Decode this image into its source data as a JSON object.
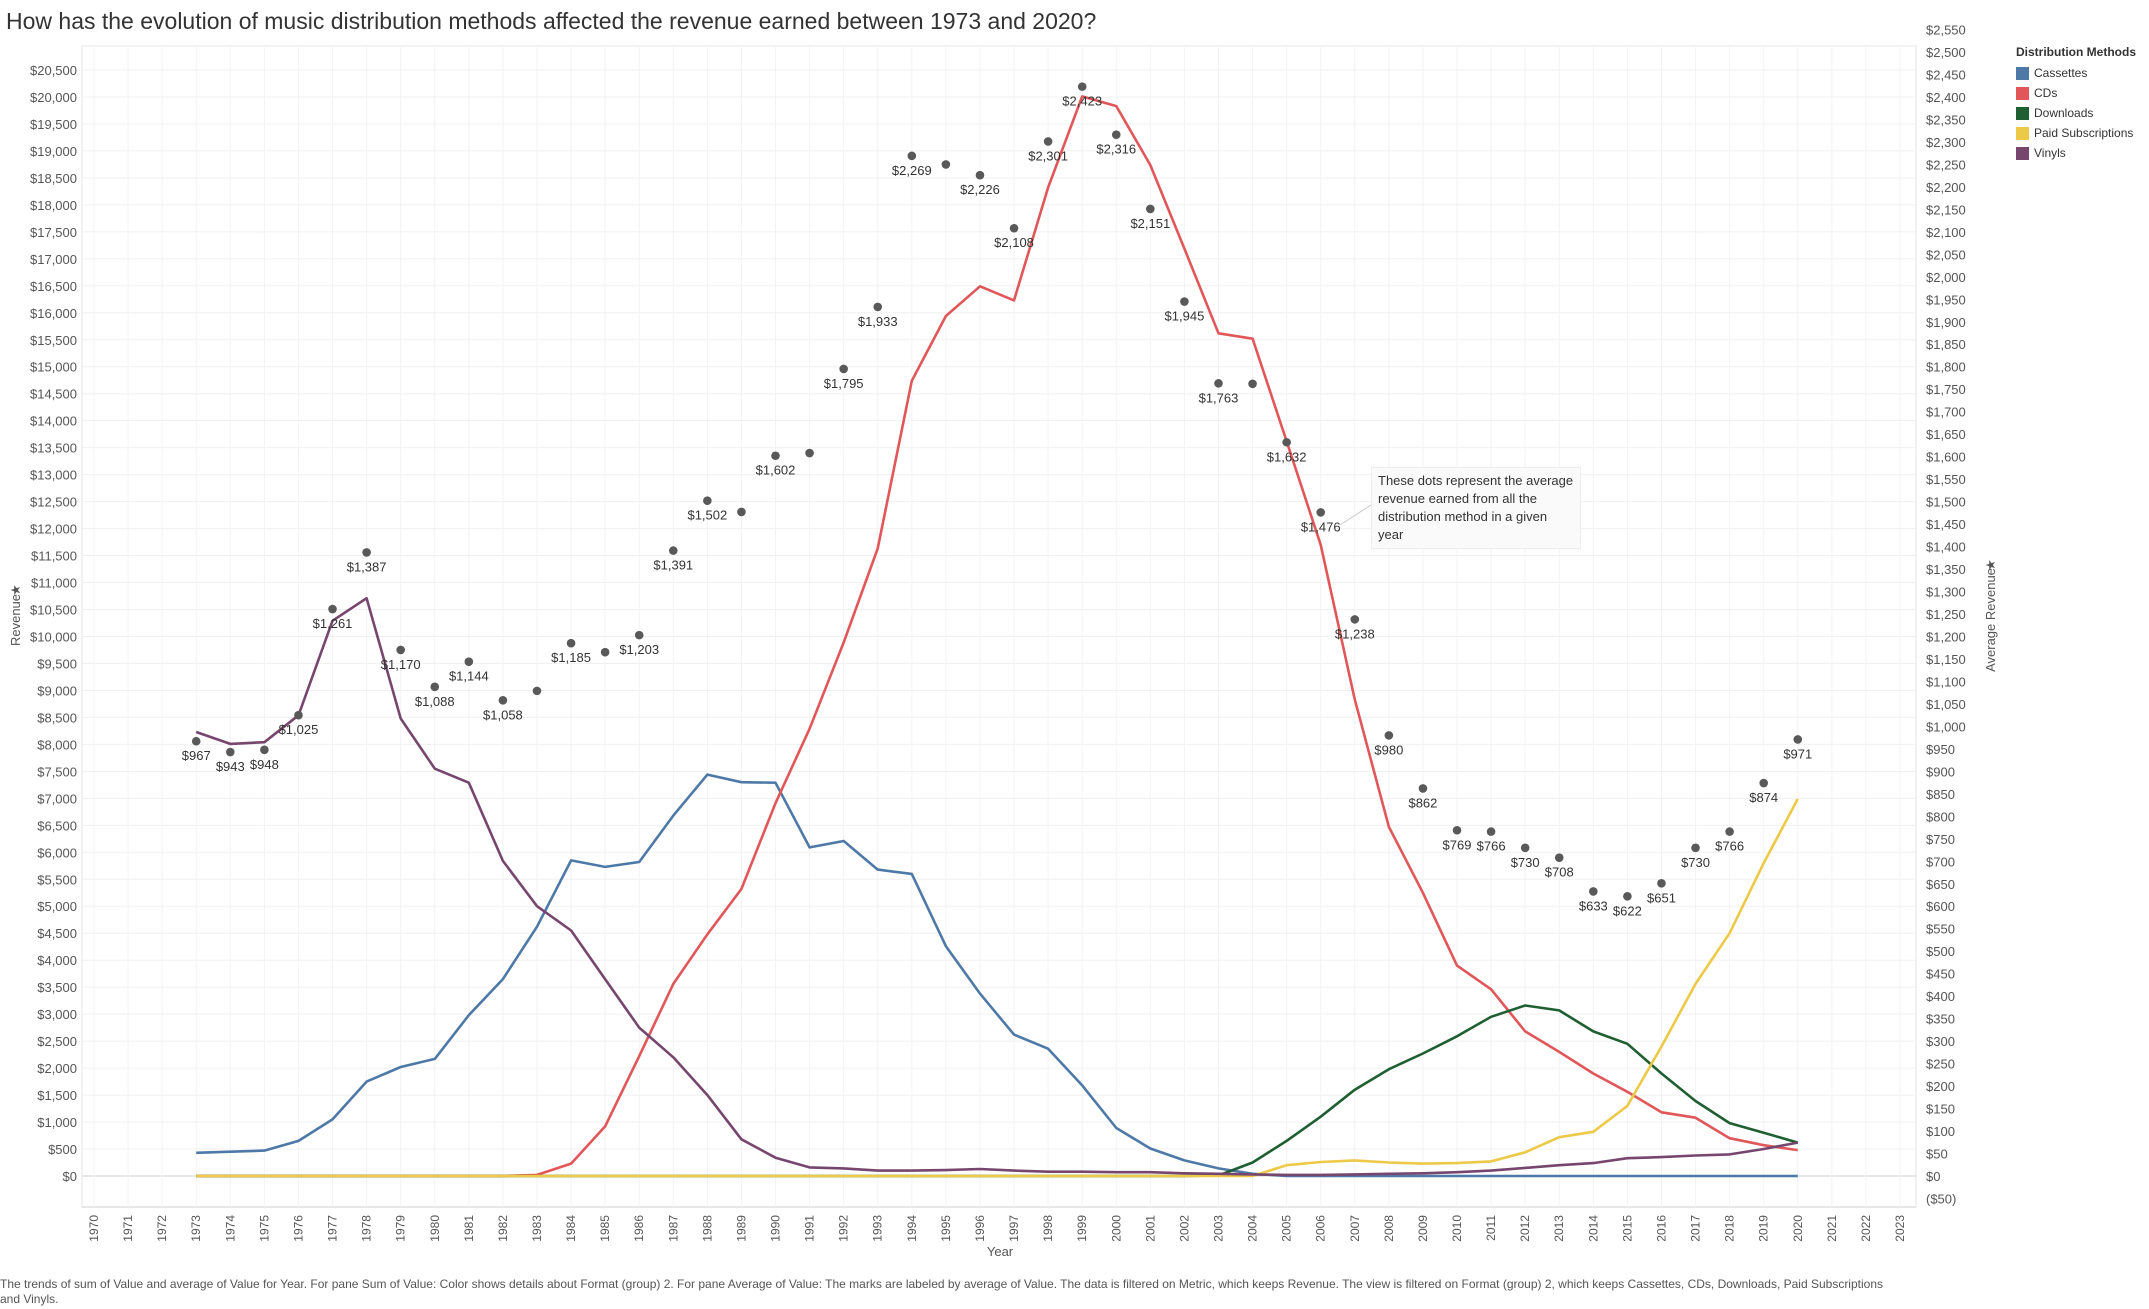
{
  "title": "How has the evolution of music distribution methods affected the revenue earned between 1973 and 2020?",
  "footnote": "The trends of sum of Value and average of Value for Year.  For pane Sum of Value:  Color shows details about Format (group) 2.  For pane Average of Value:  The marks are labeled by average of Value. The data is filtered on Metric, which keeps Revenue. The view is filtered on Format (group) 2, which keeps Cassettes, CDs, Downloads, Paid Subscriptions and Vinyls.",
  "annotation": "These dots represent the average revenue earned from all the distribution method in a given year",
  "legend": {
    "title": "Distribution Methods",
    "items": [
      {
        "label": "Cassettes",
        "color": "#4e79a7"
      },
      {
        "label": "CDs",
        "color": "#e15759"
      },
      {
        "label": "Downloads",
        "color": "#1f5f32"
      },
      {
        "label": "Paid Subscriptions",
        "color": "#edc948"
      },
      {
        "label": "Vinyls",
        "color": "#76466e"
      }
    ]
  },
  "chart_data": {
    "type": "line",
    "xlabel": "Year",
    "ylabel": "Revenue",
    "ylabel_right": "Average Revenue",
    "xlim": [
      1970,
      2023
    ],
    "ylim": [
      0,
      20500
    ],
    "ylim_right": [
      -50,
      2550
    ],
    "y_ticks": [
      "$0",
      "$500",
      "$1,000",
      "$1,500",
      "$2,000",
      "$2,500",
      "$3,000",
      "$3,500",
      "$4,000",
      "$4,500",
      "$5,000",
      "$5,500",
      "$6,000",
      "$6,500",
      "$7,000",
      "$7,500",
      "$8,000",
      "$8,500",
      "$9,000",
      "$9,500",
      "$10,000",
      "$10,500",
      "$11,000",
      "$11,500",
      "$12,000",
      "$12,500",
      "$13,000",
      "$13,500",
      "$14,000",
      "$14,500",
      "$15,000",
      "$15,500",
      "$16,000",
      "$16,500",
      "$17,000",
      "$17,500",
      "$18,000",
      "$18,500",
      "$19,000",
      "$19,500",
      "$20,000",
      "$20,500"
    ],
    "y_ticks_right": [
      "($50)",
      "$0",
      "$50",
      "$100",
      "$150",
      "$200",
      "$250",
      "$300",
      "$350",
      "$400",
      "$450",
      "$500",
      "$550",
      "$600",
      "$650",
      "$700",
      "$750",
      "$800",
      "$850",
      "$900",
      "$950",
      "$1,000",
      "$1,050",
      "$1,100",
      "$1,150",
      "$1,200",
      "$1,250",
      "$1,300",
      "$1,350",
      "$1,400",
      "$1,450",
      "$1,500",
      "$1,550",
      "$1,600",
      "$1,650",
      "$1,700",
      "$1,750",
      "$1,800",
      "$1,850",
      "$1,900",
      "$1,950",
      "$2,000",
      "$2,050",
      "$2,100",
      "$2,150",
      "$2,200",
      "$2,250",
      "$2,300",
      "$2,350",
      "$2,400",
      "$2,450",
      "$2,500",
      "$2,550"
    ],
    "x_ticks": [
      "1970",
      "1971",
      "1972",
      "1973",
      "1974",
      "1975",
      "1976",
      "1977",
      "1978",
      "1979",
      "1980",
      "1981",
      "1982",
      "1983",
      "1984",
      "1985",
      "1986",
      "1987",
      "1988",
      "1989",
      "1990",
      "1991",
      "1992",
      "1993",
      "1994",
      "1995",
      "1996",
      "1997",
      "1998",
      "1999",
      "2000",
      "2001",
      "2002",
      "2003",
      "2004",
      "2005",
      "2006",
      "2007",
      "2008",
      "2009",
      "2010",
      "2011",
      "2012",
      "2013",
      "2014",
      "2015",
      "2016",
      "2017",
      "2018",
      "2019",
      "2020",
      "2021",
      "2022",
      "2023"
    ],
    "years": [
      1973,
      1974,
      1975,
      1976,
      1977,
      1978,
      1979,
      1980,
      1981,
      1982,
      1983,
      1984,
      1985,
      1986,
      1987,
      1988,
      1989,
      1990,
      1991,
      1992,
      1993,
      1994,
      1995,
      1996,
      1997,
      1998,
      1999,
      2000,
      2001,
      2002,
      2003,
      2004,
      2005,
      2006,
      2007,
      2008,
      2009,
      2010,
      2011,
      2012,
      2013,
      2014,
      2015,
      2016,
      2017,
      2018,
      2019,
      2020
    ],
    "series": [
      {
        "name": "Cassettes",
        "color": "#4e79a7",
        "values": [
          430,
          450,
          470,
          650,
          1050,
          1750,
          2020,
          2170,
          2980,
          3650,
          4620,
          5850,
          5730,
          5820,
          6680,
          7440,
          7300,
          7290,
          6090,
          6210,
          5680,
          5600,
          4260,
          3380,
          2620,
          2360,
          1680,
          890,
          510,
          290,
          140,
          40,
          0,
          0,
          0,
          0,
          0,
          0,
          0,
          0,
          0,
          0,
          0,
          0,
          0,
          0,
          0,
          0
        ]
      },
      {
        "name": "CDs",
        "color": "#e15759",
        "values": [
          0,
          0,
          0,
          0,
          0,
          0,
          0,
          0,
          0,
          0,
          20,
          230,
          920,
          2220,
          3560,
          4480,
          5320,
          6910,
          8290,
          9890,
          11630,
          14740,
          15940,
          16490,
          16230,
          18320,
          20010,
          19830,
          18740,
          17190,
          15620,
          15520,
          13620,
          11700,
          8830,
          6470,
          5250,
          3900,
          3460,
          2680,
          2300,
          1900,
          1560,
          1180,
          1080,
          700,
          570,
          480
        ]
      },
      {
        "name": "Downloads",
        "color": "#1f5f32",
        "values": [
          0,
          0,
          0,
          0,
          0,
          0,
          0,
          0,
          0,
          0,
          0,
          0,
          0,
          0,
          0,
          0,
          0,
          0,
          0,
          0,
          0,
          0,
          0,
          0,
          0,
          0,
          0,
          0,
          0,
          0,
          10,
          250,
          650,
          1100,
          1600,
          1980,
          2270,
          2590,
          2950,
          3160,
          3070,
          2680,
          2450,
          1900,
          1390,
          980,
          800,
          620
        ]
      },
      {
        "name": "Paid Subscriptions",
        "color": "#edc948",
        "values": [
          0,
          0,
          0,
          0,
          0,
          0,
          0,
          0,
          0,
          0,
          0,
          0,
          0,
          0,
          0,
          0,
          0,
          0,
          0,
          0,
          0,
          0,
          0,
          0,
          0,
          0,
          0,
          0,
          0,
          0,
          0,
          0,
          200,
          260,
          290,
          250,
          230,
          240,
          270,
          440,
          720,
          820,
          1300,
          2400,
          3560,
          4500,
          5800,
          6990
        ]
      },
      {
        "name": "Vinyls",
        "color": "#76466e",
        "values": [
          8230,
          8010,
          8040,
          8540,
          10290,
          10710,
          8480,
          7550,
          7290,
          5840,
          5000,
          4550,
          3650,
          2750,
          2200,
          1500,
          680,
          340,
          160,
          140,
          100,
          100,
          110,
          130,
          100,
          80,
          80,
          70,
          70,
          50,
          40,
          30,
          20,
          20,
          30,
          40,
          50,
          70,
          100,
          150,
          200,
          240,
          330,
          350,
          380,
          400,
          500,
          620
        ]
      },
      {
        "name": "Average",
        "axis": "right",
        "color": "#595959",
        "values": [
          967,
          943,
          948,
          1025,
          1261,
          1387,
          1170,
          1088,
          1144,
          1058,
          1079,
          1185,
          1165,
          1203,
          1391,
          1502,
          1477,
          1602,
          1608,
          1795,
          1933,
          2269,
          2250,
          2226,
          2108,
          2301,
          2423,
          2316,
          2151,
          1945,
          1763,
          1762,
          1632,
          1476,
          1238,
          980,
          862,
          769,
          766,
          730,
          708,
          633,
          622,
          651,
          730,
          766,
          874,
          971
        ],
        "labels": [
          "$967",
          "$943",
          "$948",
          "$1,025",
          "$1,261",
          "$1,387",
          "$1,170",
          "$1,088",
          "$1,144",
          "$1,058",
          "",
          "$1,185",
          "",
          "$1,203",
          "$1,391",
          "$1,502",
          "",
          "$1,602",
          "",
          "$1,795",
          "$1,933",
          "$2,269",
          "",
          "$2,226",
          "$2,108",
          "$2,301",
          "$2,423",
          "$2,316",
          "$2,151",
          "$1,945",
          "$1,763",
          "",
          "$1,632",
          "$1,476",
          "$1,238",
          "$980",
          "$862",
          "$769",
          "$766",
          "$730",
          "$708",
          "$633",
          "$622",
          "$651",
          "$730",
          "$766",
          "$874",
          "$971"
        ]
      }
    ]
  }
}
